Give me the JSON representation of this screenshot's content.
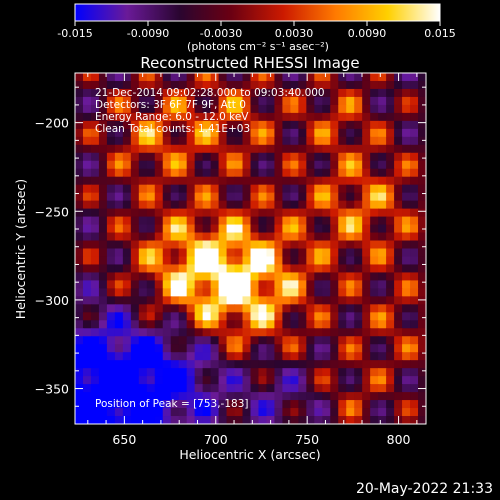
{
  "chart_data": {
    "type": "heatmap",
    "title": "Reconstructed RHESSI Image",
    "xlabel": "Heliocentric X (arcsec)",
    "ylabel": "Heliocentric Y (arcsec)",
    "xlim": [
      623,
      815
    ],
    "ylim": [
      -370,
      -172
    ],
    "xticks": [
      650,
      700,
      750,
      800
    ],
    "yticks": [
      -350,
      -300,
      -250,
      -200
    ],
    "colorbar": {
      "range": [
        -0.015,
        0.015
      ],
      "ticks": [
        "-0.015",
        "-0.0090",
        "-0.0030",
        "0.0030",
        "0.0090",
        "0.015"
      ],
      "label": "(photons cm⁻² s⁻¹ asec⁻²)",
      "colors": [
        "#0000ff",
        "#6a1a98",
        "#2a0530",
        "#6b0012",
        "#cc1a00",
        "#ff7a00",
        "#ffd000",
        "#ffffff"
      ]
    },
    "annotations": [
      "21-Dec-2014 09:02:28.000 to 09:03:40.000",
      "Detectors: 3F 6F 7F 9F, Att 0",
      "Energy Range: 6.0 - 12.0 keV",
      "Clean     Total counts: 1.41E+03"
    ],
    "peak_text": "Position of Peak = [753,-183]",
    "peak": [
      753,
      -183
    ],
    "grid": false
  },
  "timestamp": "20-May-2022 21:33"
}
